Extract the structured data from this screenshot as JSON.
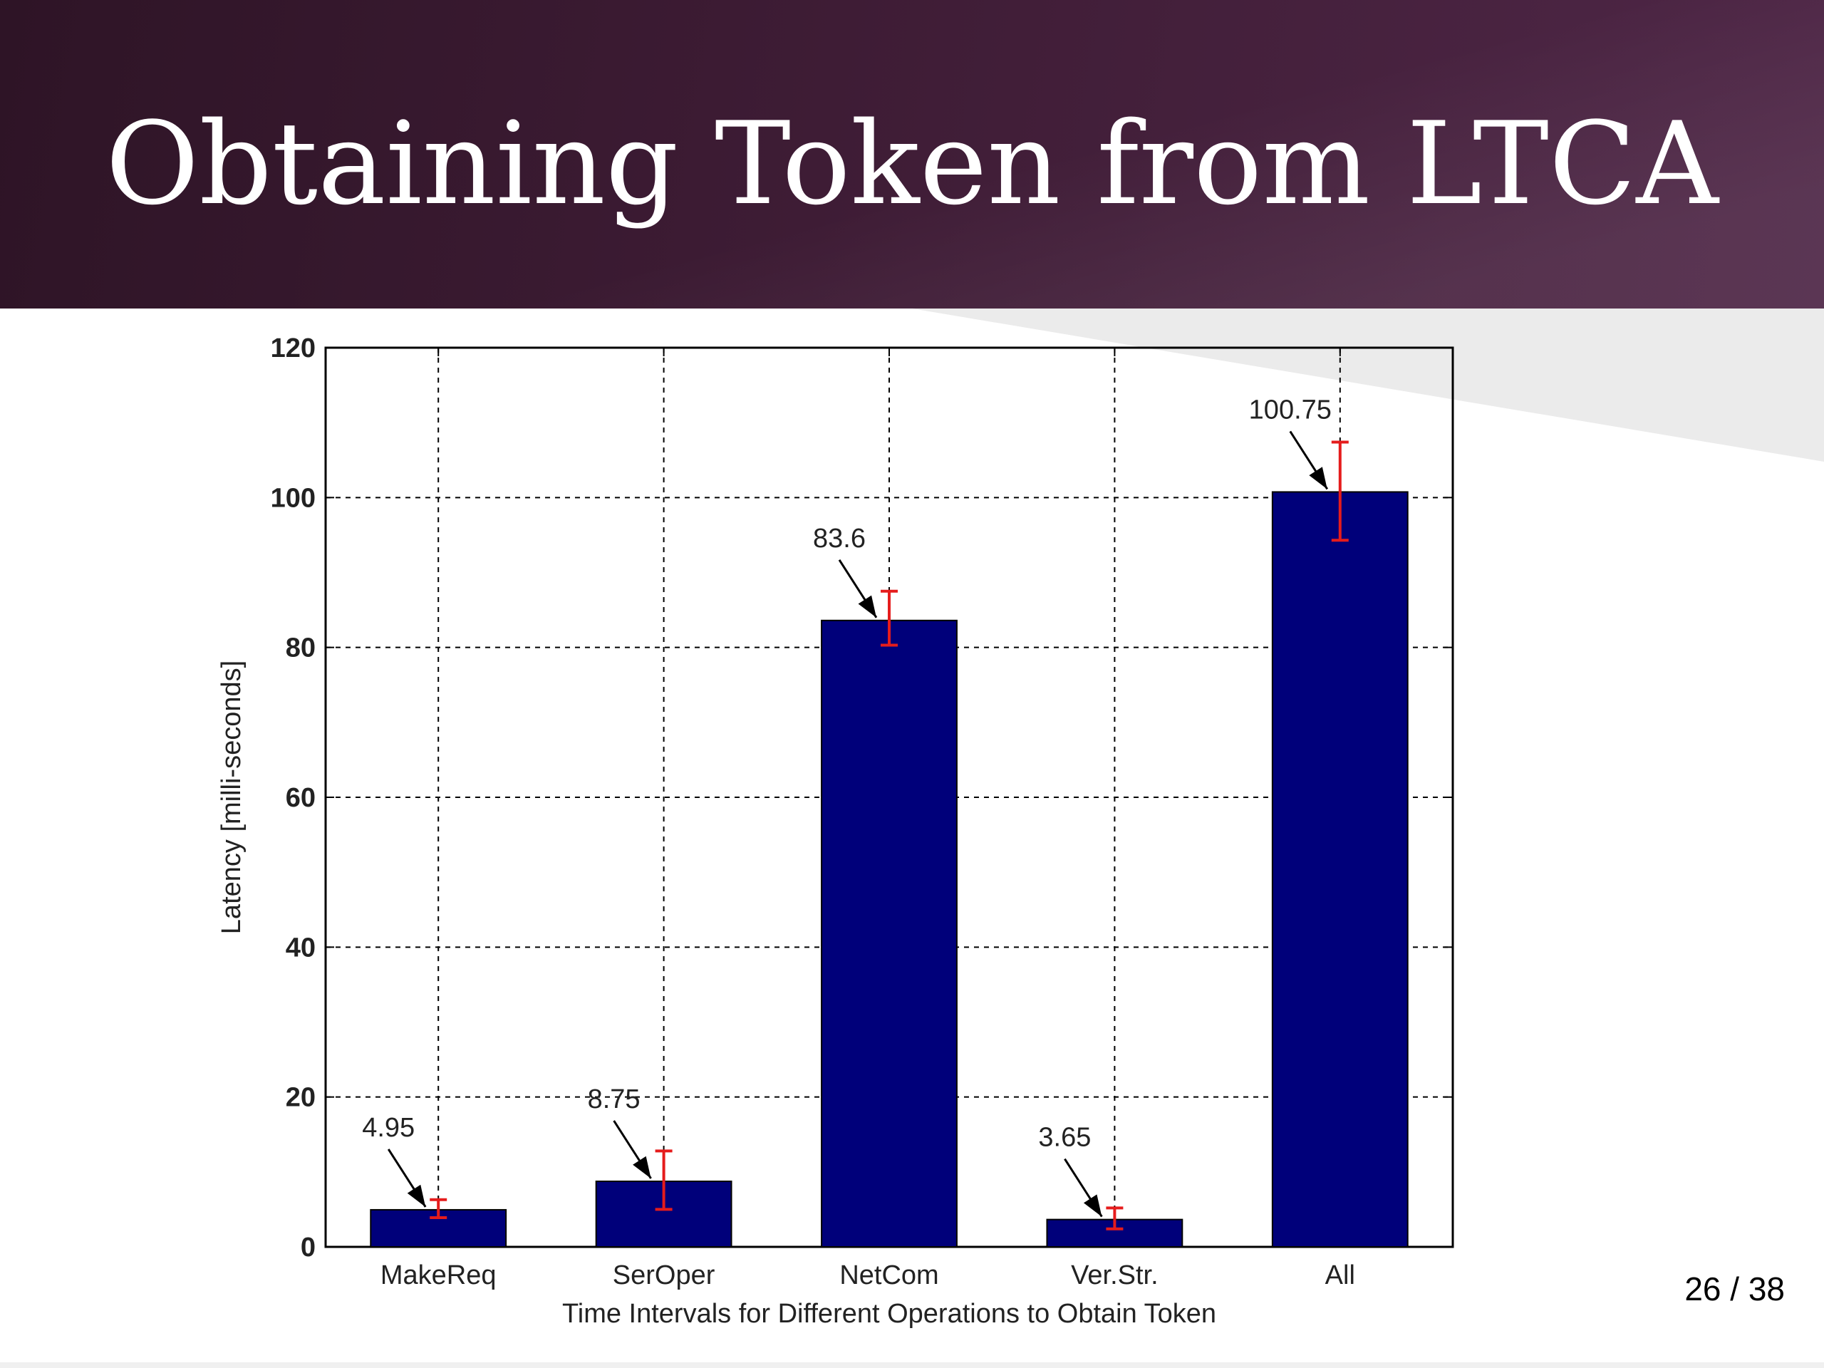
{
  "slide": {
    "title": "Obtaining Token from LTCA",
    "page_number": "26 / 38"
  },
  "colors": {
    "header_background": "#3e1c35",
    "bar_fill": "#00007a",
    "error_bar": "#e51c1c",
    "grid": "#000000"
  },
  "chart_data": {
    "type": "bar",
    "xlabel": "Time Intervals for Different Operations to Obtain Token",
    "ylabel": "Latency [milli-seconds]",
    "ylim": [
      0,
      120
    ],
    "yticks": [
      0,
      20,
      40,
      60,
      80,
      100,
      120
    ],
    "grid": true,
    "categories": [
      "MakeReq",
      "SerOper",
      "NetCom",
      "Ver.Str.",
      "All"
    ],
    "values": [
      4.95,
      8.75,
      83.6,
      3.65,
      100.75
    ],
    "data_labels": [
      "4.95",
      "8.75",
      "83.6",
      "3.65",
      "100.75"
    ],
    "error_low": [
      3.9,
      5.0,
      80.3,
      2.4,
      94.3
    ],
    "error_high": [
      6.3,
      12.8,
      87.5,
      5.2,
      107.4
    ]
  }
}
